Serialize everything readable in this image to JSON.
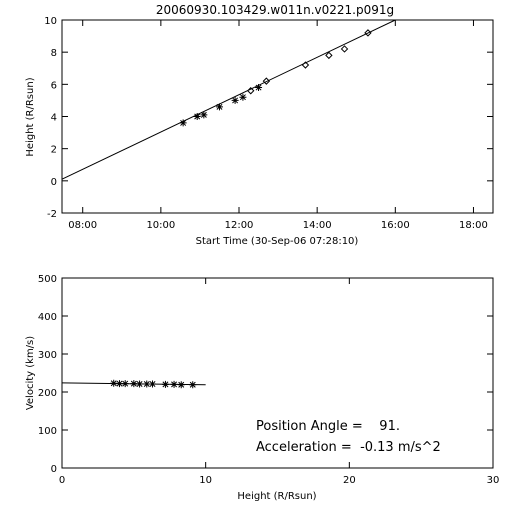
{
  "chart_data": [
    {
      "type": "scatter",
      "title": "20060930.103429.w011n.v0221.p091g",
      "xlabel": "Start Time (30-Sep-06 07:28:10)",
      "ylabel": "Height (R/Rsun)",
      "x_unit": "hours",
      "xlim": [
        7.47,
        18.5
      ],
      "ylim": [
        -2,
        10
      ],
      "x_ticks": [
        8,
        10,
        12,
        14,
        16,
        18
      ],
      "x_tick_labels": [
        "08:00",
        "10:00",
        "12:00",
        "14:00",
        "16:00",
        "18:00"
      ],
      "y_ticks": [
        -2,
        0,
        2,
        4,
        6,
        8,
        10
      ],
      "y_tick_labels": [
        "-2",
        "0",
        "2",
        "4",
        "6",
        "8",
        "10"
      ],
      "series": [
        {
          "marker": "asterisk",
          "x": [
            10.57,
            10.93,
            11.1,
            11.5,
            11.9,
            12.1,
            12.5
          ],
          "y": [
            3.6,
            4.0,
            4.1,
            4.6,
            5.0,
            5.2,
            5.8
          ]
        },
        {
          "marker": "diamond",
          "x": [
            12.3,
            12.7,
            13.7,
            14.3,
            14.7,
            15.3
          ],
          "y": [
            5.6,
            6.2,
            7.2,
            7.8,
            8.2,
            9.2
          ]
        },
        {
          "marker": "line",
          "x": [
            7.47,
            16.0
          ],
          "y": [
            0.1,
            10.0
          ]
        }
      ]
    },
    {
      "type": "scatter",
      "xlabel": "Height (R/Rsun)",
      "ylabel": "Velocity (km/s)",
      "xlim": [
        0,
        30
      ],
      "ylim": [
        0,
        500
      ],
      "x_ticks": [
        0,
        10,
        20,
        30
      ],
      "x_tick_labels": [
        "0",
        "10",
        "20",
        "30"
      ],
      "y_ticks": [
        0,
        100,
        200,
        300,
        400,
        500
      ],
      "y_tick_labels": [
        "0",
        "100",
        "200",
        "300",
        "400",
        "500"
      ],
      "series": [
        {
          "marker": "asterisk",
          "x": [
            3.6,
            4.0,
            4.4,
            5.0,
            5.4,
            5.9,
            6.3,
            7.2,
            7.8,
            8.3,
            9.1
          ],
          "y": [
            223,
            222,
            222,
            222,
            221,
            221,
            221,
            220,
            220,
            219,
            219
          ]
        },
        {
          "marker": "line",
          "x": [
            0,
            10
          ],
          "y": [
            224,
            219
          ]
        }
      ],
      "annotations": [
        "Position Angle =    91.",
        "Acceleration =  -0.13 m/s^2"
      ]
    }
  ]
}
